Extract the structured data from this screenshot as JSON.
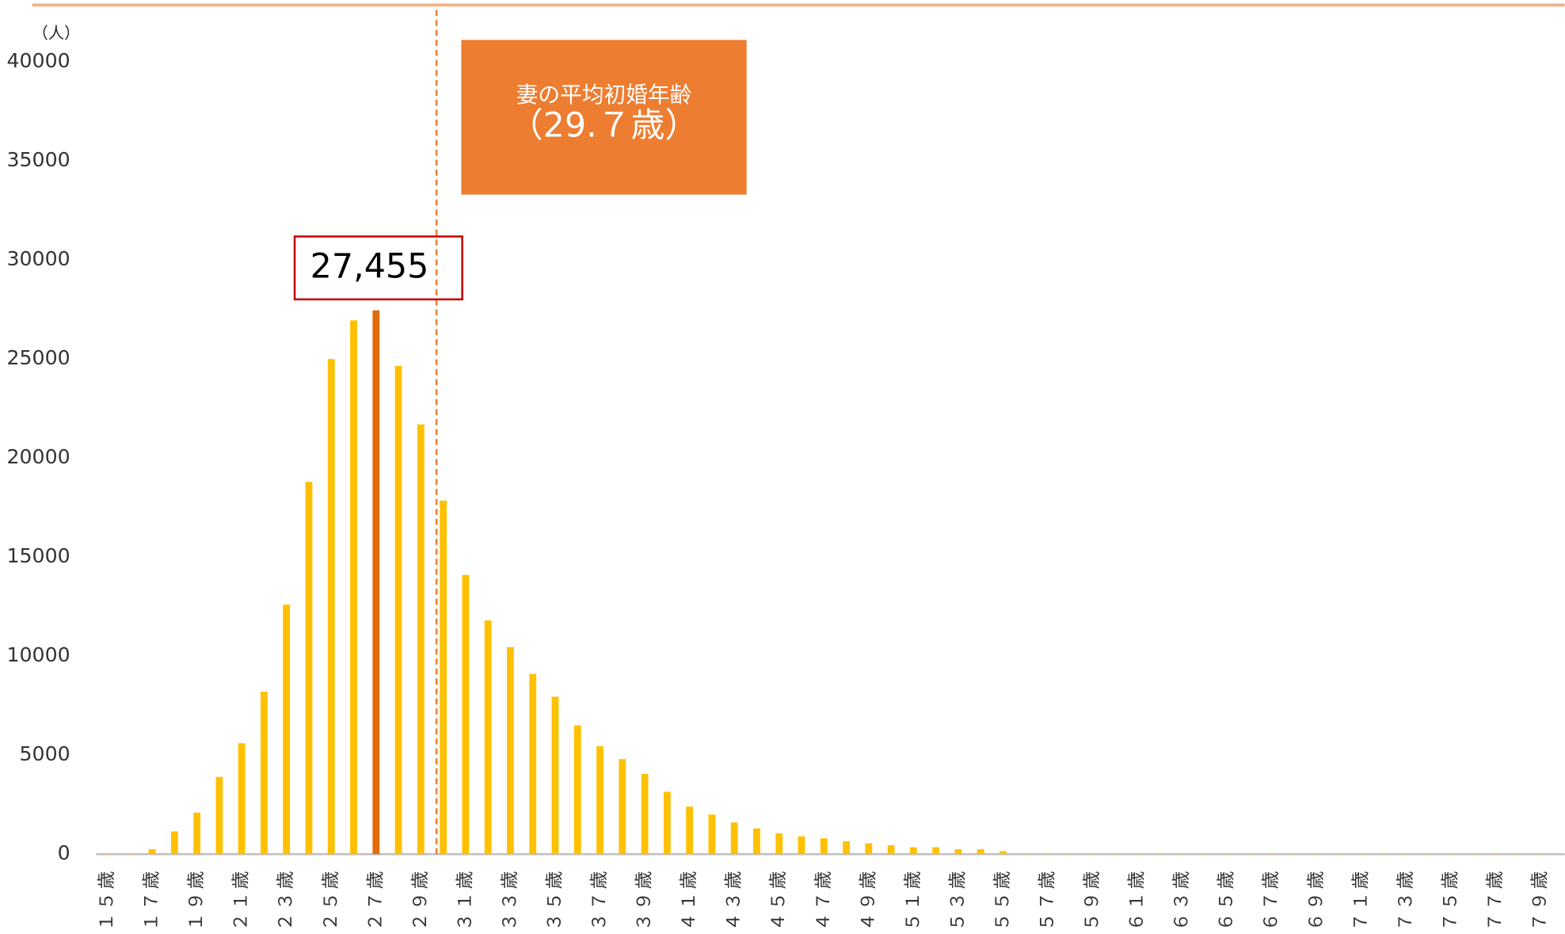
{
  "chart_data": {
    "type": "bar",
    "y_unit": "（人）",
    "categories": [
      "１５歳",
      null,
      "１７歳",
      null,
      "１９歳",
      null,
      "２１歳",
      null,
      "２３歳",
      null,
      "２５歳",
      null,
      "２７歳",
      null,
      "２９歳",
      null,
      "３１歳",
      null,
      "３３歳",
      null,
      "３５歳",
      null,
      "３７歳",
      null,
      "３９歳",
      null,
      "４１歳",
      null,
      "４３歳",
      null,
      "４５歳",
      null,
      "４７歳",
      null,
      "４９歳",
      null,
      "５１歳",
      null,
      "５３歳",
      null,
      "５５歳",
      null,
      "５７歳",
      null,
      "５９歳",
      null,
      "６１歳",
      null,
      "６３歳",
      null,
      "６５歳",
      null,
      "６７歳",
      null,
      "６９歳",
      null,
      "７１歳",
      null,
      "７３歳",
      null,
      "７５歳",
      null,
      "７７歳",
      null,
      "７９歳"
    ],
    "values": [
      50,
      50,
      250,
      1150,
      2100,
      3900,
      5600,
      8200,
      12600,
      18800,
      25000,
      26950,
      27455,
      24650,
      21700,
      17850,
      14100,
      11800,
      10450,
      9100,
      7950,
      6500,
      5450,
      4800,
      4050,
      3150,
      2400,
      2000,
      1600,
      1300,
      1050,
      900,
      800,
      650,
      550,
      450,
      350,
      350,
      250,
      250,
      150,
      30,
      30,
      30,
      30,
      30,
      30,
      30,
      30,
      30,
      30,
      30,
      30,
      30,
      30,
      30,
      30,
      30,
      30,
      30,
      30,
      30,
      30,
      30,
      30
    ],
    "color": "#FFC000",
    "highlight": {
      "index": 12,
      "color": "#E26B0A",
      "label": "27,455"
    },
    "mean": {
      "value": 29.7,
      "title": "妻の平均初婚年齢",
      "label": "（29.７歳）",
      "color": "#ED7D31"
    },
    "ylim": [
      0,
      40000
    ],
    "yticks": [
      0,
      5000,
      10000,
      15000,
      20000,
      25000,
      30000,
      35000,
      40000
    ]
  }
}
